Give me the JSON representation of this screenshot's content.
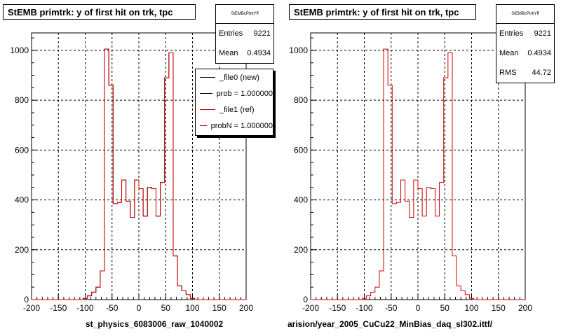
{
  "colors": {
    "new": "#000000",
    "ref": "#cc0000",
    "grid": "#000000"
  },
  "panels": [
    {
      "title": "StEMB primtrk: y of first hit on trk, tpc",
      "xtitle": "st_physics_6083006_raw_1040002",
      "stats": {
        "name": "StEMBcPtrkYff",
        "entries_label": "Entries",
        "entries": "9221",
        "mean_label": "Mean",
        "mean": "0.4934"
      },
      "legend": [
        {
          "label": "_file0 (new)",
          "color": "#000000"
        },
        {
          "label": "prob = 1.000000",
          "color": "#000000"
        },
        {
          "label": "_file1 (ref)",
          "color": "#cc0000"
        },
        {
          "label": "probN = 1.000000",
          "color": "#cc0000"
        }
      ]
    },
    {
      "title": "StEMB primtrk: y of first hit on trk, tpc",
      "xtitle": "arision/year_2005_CuCu22_MinBias_daq_sl302.ittf/",
      "stats": {
        "name": "StEMBcPtrkYff",
        "entries_label": "Entries",
        "entries": "9221",
        "mean_label": "Mean",
        "mean": "0.4934",
        "rms_label": "RMS",
        "rms": "44.72"
      }
    }
  ],
  "chart_data": [
    {
      "type": "bar",
      "title": "StEMB primtrk: y of first hit on trk, tpc",
      "xlabel": "st_physics_6083006_raw_1040002",
      "ylabel": "",
      "xlim": [
        -200,
        200
      ],
      "ylim": [
        0,
        1070
      ],
      "xticks": [
        -200,
        -150,
        -100,
        -50,
        0,
        50,
        100,
        150,
        200
      ],
      "yticks": [
        0,
        200,
        400,
        600,
        800,
        1000
      ],
      "grid": true,
      "bin_width": 8,
      "x": [
        -200,
        -192,
        -184,
        -176,
        -168,
        -160,
        -152,
        -144,
        -136,
        -128,
        -120,
        -112,
        -104,
        -96,
        -88,
        -80,
        -72,
        -64,
        -56,
        -48,
        -40,
        -32,
        -24,
        -16,
        -8,
        0,
        8,
        16,
        24,
        32,
        40,
        48,
        56,
        64,
        72,
        80,
        88,
        96,
        104,
        112,
        120,
        128,
        136,
        144,
        152,
        160,
        168,
        176,
        184,
        192
      ],
      "series": [
        {
          "name": "_file0 (new)",
          "color": "#000000",
          "values": [
            0,
            0,
            0,
            0,
            0,
            0,
            0,
            0,
            0,
            0,
            0,
            0,
            5,
            15,
            30,
            50,
            115,
            1005,
            860,
            385,
            390,
            480,
            395,
            330,
            480,
            445,
            335,
            450,
            445,
            335,
            470,
            890,
            990,
            175,
            55,
            35,
            20,
            5,
            0,
            0,
            0,
            0,
            0,
            0,
            0,
            0,
            0,
            0,
            0,
            0
          ]
        },
        {
          "name": "_file1 (ref)",
          "color": "#cc0000",
          "values": [
            0,
            0,
            0,
            0,
            0,
            0,
            0,
            0,
            0,
            0,
            0,
            0,
            5,
            15,
            30,
            50,
            115,
            1005,
            860,
            385,
            390,
            480,
            395,
            330,
            480,
            445,
            335,
            450,
            445,
            335,
            470,
            890,
            990,
            175,
            55,
            35,
            20,
            5,
            0,
            0,
            0,
            0,
            0,
            0,
            0,
            0,
            0,
            0,
            0,
            0
          ]
        }
      ],
      "legend_position": "top-right"
    },
    {
      "type": "bar",
      "title": "StEMB primtrk: y of first hit on trk, tpc",
      "xlabel": "arision/year_2005_CuCu22_MinBias_daq_sl302.ittf/",
      "ylabel": "",
      "xlim": [
        -200,
        200
      ],
      "ylim": [
        0,
        1070
      ],
      "xticks": [
        -200,
        -150,
        -100,
        -50,
        0,
        50,
        100,
        150,
        200
      ],
      "yticks": [
        0,
        200,
        400,
        600,
        800,
        1000
      ],
      "grid": true,
      "bin_width": 8,
      "x": [
        -200,
        -192,
        -184,
        -176,
        -168,
        -160,
        -152,
        -144,
        -136,
        -128,
        -120,
        -112,
        -104,
        -96,
        -88,
        -80,
        -72,
        -64,
        -56,
        -48,
        -40,
        -32,
        -24,
        -16,
        -8,
        0,
        8,
        16,
        24,
        32,
        40,
        48,
        56,
        64,
        72,
        80,
        88,
        96,
        104,
        112,
        120,
        128,
        136,
        144,
        152,
        160,
        168,
        176,
        184,
        192
      ],
      "series": [
        {
          "name": "",
          "color": "#cc0000",
          "values": [
            0,
            0,
            0,
            0,
            0,
            0,
            0,
            0,
            0,
            0,
            0,
            0,
            5,
            15,
            30,
            50,
            115,
            1005,
            860,
            385,
            390,
            480,
            395,
            330,
            480,
            445,
            335,
            450,
            445,
            335,
            470,
            890,
            990,
            175,
            55,
            35,
            20,
            5,
            0,
            0,
            0,
            0,
            0,
            0,
            0,
            0,
            0,
            0,
            0,
            0
          ]
        }
      ]
    }
  ]
}
